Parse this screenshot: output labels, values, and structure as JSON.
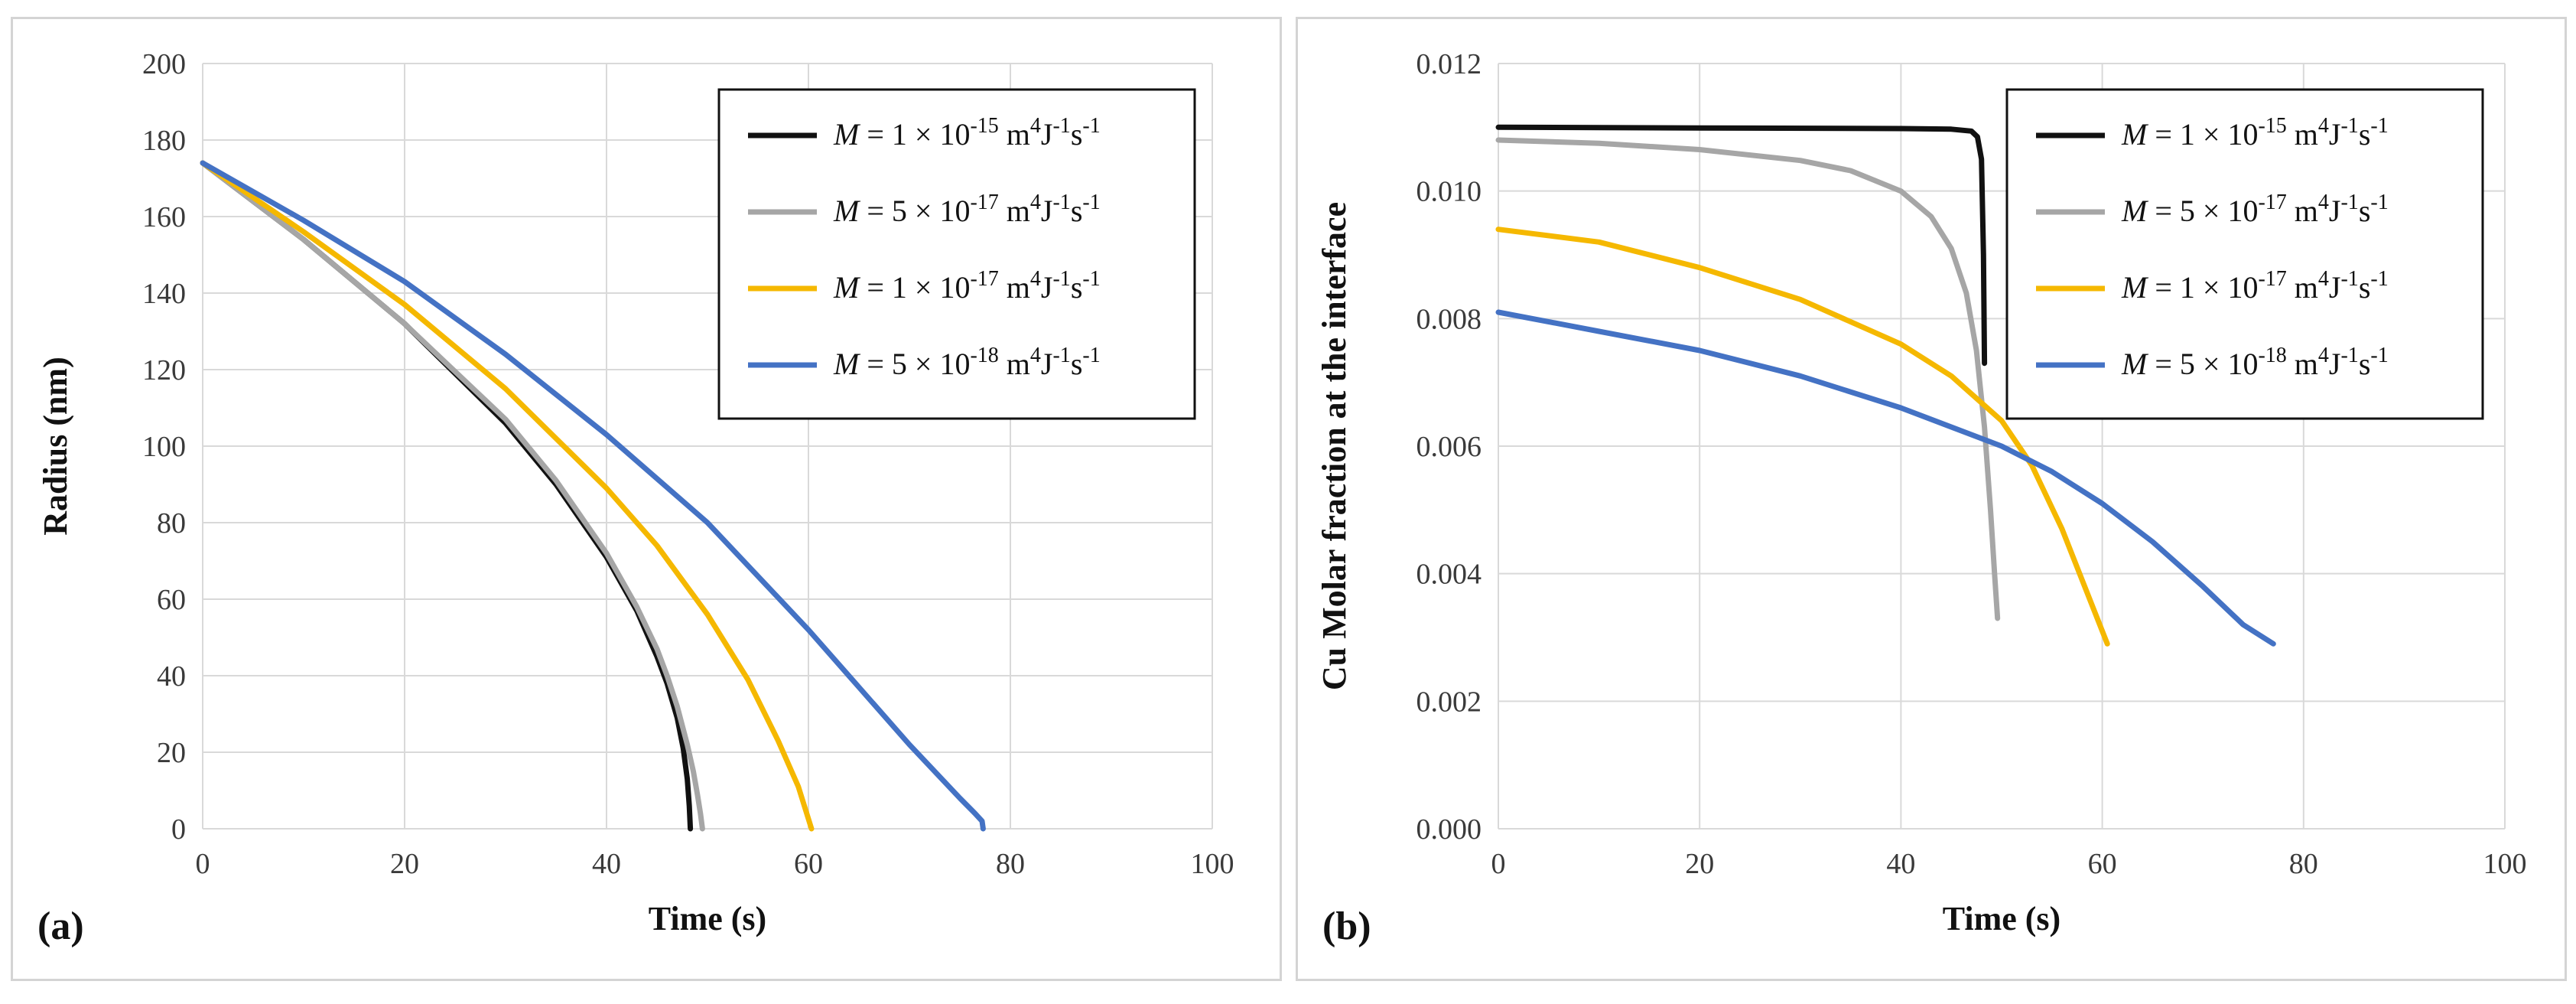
{
  "chart_data": [
    {
      "type": "line",
      "panel_label": "(a)",
      "title": "",
      "xlabel": "Time (s)",
      "ylabel": "Radius (nm)",
      "xlim": [
        0,
        100
      ],
      "ylim": [
        0,
        200
      ],
      "xticks": [
        0,
        20,
        40,
        60,
        80,
        100
      ],
      "yticks": [
        0,
        20,
        40,
        60,
        80,
        100,
        120,
        140,
        160,
        180,
        200
      ],
      "tick_decimals": 0,
      "grid": true,
      "legend_position": "top-right",
      "series": [
        {
          "name": "M = 1 × 10-15 m4J-1s-1",
          "legend": {
            "sym": "M",
            "rest": " = 1 × 10",
            "exp": "-15",
            "u1": " m",
            "e1": "4",
            "u2": "J",
            "e2": "-1",
            "u3": "s",
            "e3": "-1"
          },
          "color": "#111111",
          "x": [
            0,
            10,
            20,
            30,
            35,
            40,
            43,
            45,
            46,
            47,
            47.6,
            48,
            48.2,
            48.3
          ],
          "y": [
            174,
            154,
            132,
            106,
            90,
            71,
            57,
            45,
            38,
            29,
            21,
            13,
            6,
            0
          ]
        },
        {
          "name": "M = 5 × 10-17 m4J-1s-1",
          "legend": {
            "sym": "M",
            "rest": " = 5 × 10",
            "exp": "-17",
            "u1": " m",
            "e1": "4",
            "u2": "J",
            "e2": "-1",
            "u3": "s",
            "e3": "-1"
          },
          "color": "#a6a6a6",
          "x": [
            0,
            10,
            20,
            30,
            35,
            40,
            43,
            45,
            46,
            47,
            48,
            48.6,
            49,
            49.3,
            49.5
          ],
          "y": [
            174,
            154,
            132,
            107,
            91,
            72,
            58,
            47,
            40,
            32,
            22,
            15,
            9,
            4,
            0
          ]
        },
        {
          "name": "M = 1 × 10-17 m4J-1s-1",
          "legend": {
            "sym": "M",
            "rest": " = 1 × 10",
            "exp": "-17",
            "u1": " m",
            "e1": "4",
            "u2": "J",
            "e2": "-1",
            "u3": "s",
            "e3": "-1"
          },
          "color": "#f5b800",
          "x": [
            0,
            10,
            20,
            30,
            40,
            45,
            50,
            54,
            57,
            59,
            60.3
          ],
          "y": [
            174,
            156,
            137,
            115,
            89,
            74,
            56,
            39,
            23,
            11,
            0
          ]
        },
        {
          "name": "M = 5 × 10-18 m4J-1s-1",
          "legend": {
            "sym": "M",
            "rest": " = 5 × 10",
            "exp": "-18",
            "u1": " m",
            "e1": "4",
            "u2": "J",
            "e2": "-1",
            "u3": "s",
            "e3": "-1"
          },
          "color": "#4472c4",
          "x": [
            0,
            10,
            20,
            30,
            40,
            50,
            55,
            60,
            65,
            70,
            75,
            76.5,
            77.2,
            77.3
          ],
          "y": [
            174,
            159,
            143,
            124,
            103,
            80,
            66,
            52,
            37,
            22,
            8,
            4,
            2,
            0
          ]
        }
      ]
    },
    {
      "type": "line",
      "panel_label": "(b)",
      "title": "",
      "xlabel": "Time (s)",
      "ylabel": "Cu Molar fraction at the interface",
      "xlim": [
        0,
        100
      ],
      "ylim": [
        0,
        0.012
      ],
      "xticks": [
        0,
        20,
        40,
        60,
        80,
        100
      ],
      "yticks": [
        0,
        0.002,
        0.004,
        0.006,
        0.008,
        0.01,
        0.012
      ],
      "tick_decimals": 3,
      "grid": true,
      "legend_position": "top-right",
      "series": [
        {
          "name": "M = 1 × 10-15 m4J-1s-1",
          "legend": {
            "sym": "M",
            "rest": " = 1 × 10",
            "exp": "-15",
            "u1": " m",
            "e1": "4",
            "u2": "J",
            "e2": "-1",
            "u3": "s",
            "e3": "-1"
          },
          "color": "#111111",
          "x": [
            0,
            20,
            40,
            45,
            47,
            47.6,
            48,
            48.2,
            48.3
          ],
          "y": [
            0.011,
            0.01099,
            0.01098,
            0.01097,
            0.01094,
            0.01085,
            0.0105,
            0.009,
            0.0073
          ]
        },
        {
          "name": "M = 5 × 10-17 m4J-1s-1",
          "legend": {
            "sym": "M",
            "rest": " = 5 × 10",
            "exp": "-17",
            "u1": " m",
            "e1": "4",
            "u2": "J",
            "e2": "-1",
            "u3": "s",
            "e3": "-1"
          },
          "color": "#a6a6a6",
          "x": [
            0,
            10,
            20,
            30,
            35,
            40,
            43,
            45,
            46.5,
            47.5,
            48.3,
            48.9,
            49.3,
            49.6
          ],
          "y": [
            0.0108,
            0.01075,
            0.01065,
            0.01048,
            0.01032,
            0.01,
            0.0096,
            0.0091,
            0.0084,
            0.0075,
            0.0063,
            0.005,
            0.004,
            0.0033
          ]
        },
        {
          "name": "M = 1 × 10-17 m4J-1s-1",
          "legend": {
            "sym": "M",
            "rest": " = 1 × 10",
            "exp": "-17",
            "u1": " m",
            "e1": "4",
            "u2": "J",
            "e2": "-1",
            "u3": "s",
            "e3": "-1"
          },
          "color": "#f5b800",
          "x": [
            0,
            10,
            20,
            30,
            40,
            45,
            50,
            53,
            56,
            58,
            60.5
          ],
          "y": [
            0.0094,
            0.0092,
            0.0088,
            0.0083,
            0.0076,
            0.0071,
            0.0064,
            0.0057,
            0.0047,
            0.0039,
            0.0029
          ]
        },
        {
          "name": "M = 5 × 10-18 m4J-1s-1",
          "legend": {
            "sym": "M",
            "rest": " = 5 × 10",
            "exp": "-18",
            "u1": " m",
            "e1": "4",
            "u2": "J",
            "e2": "-1",
            "u3": "s",
            "e3": "-1"
          },
          "color": "#4472c4",
          "x": [
            0,
            10,
            20,
            30,
            40,
            50,
            55,
            60,
            65,
            70,
            74,
            77
          ],
          "y": [
            0.0081,
            0.0078,
            0.0075,
            0.0071,
            0.0066,
            0.006,
            0.0056,
            0.0051,
            0.0045,
            0.0038,
            0.0032,
            0.0029
          ]
        }
      ]
    }
  ]
}
